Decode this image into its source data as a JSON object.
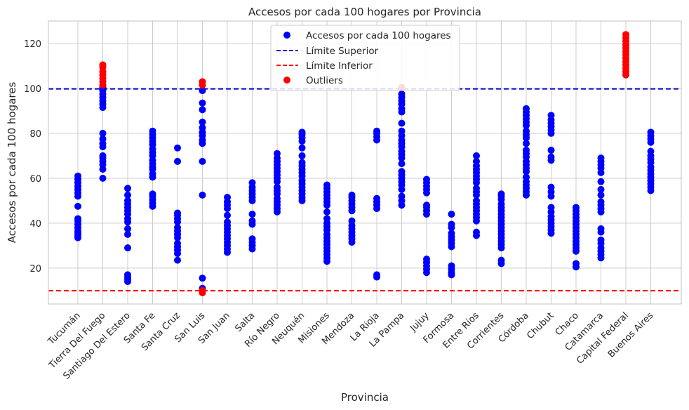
{
  "chart_data": {
    "type": "scatter",
    "title": "Accesos por cada 100 hogares por Provincia",
    "xlabel": "Provincia",
    "ylabel": "Accesos por cada 100 hogares",
    "ylim": [
      4,
      130
    ],
    "yticks": [
      20,
      40,
      60,
      80,
      100,
      120
    ],
    "grid": true,
    "legend_position": "top-center",
    "categories": [
      "Tucumán",
      "Tierra Del Fuego",
      "Santiago Del Estero",
      "Santa Fe",
      "Santa Cruz",
      "San Luis",
      "San Juan",
      "Salta",
      "Río Negro",
      "Neuquén",
      "Misiones",
      "Mendoza",
      "La Rioja",
      "La Pampa",
      "Jujuy",
      "Formosa",
      "Entre Ríos",
      "Corrientes",
      "Córdoba",
      "Chubut",
      "Chaco",
      "Catamarca",
      "Capital Federal",
      "Buenos Aires"
    ],
    "colors": {
      "series": "#0000ff",
      "upper": "#0000cc",
      "lower": "#ff0000",
      "outliers": "#ff0000"
    },
    "series": [
      {
        "name": "Accesos por cada 100 hogares",
        "values": [
          [
            33.5,
            34.5,
            35.5,
            36.5,
            38,
            39.5,
            41,
            42,
            47.5,
            52,
            53.5,
            55,
            56.5,
            58,
            59.5,
            61
          ],
          [
            60,
            64,
            66,
            67.5,
            69,
            70,
            74,
            75.5,
            77.5,
            80,
            91.5,
            93,
            94.5,
            96,
            97.5,
            99,
            100.5
          ],
          [
            14,
            15,
            16,
            17,
            29,
            35,
            37.5,
            40.5,
            42,
            44,
            45.5,
            47,
            48.5,
            50,
            52.5,
            55.5
          ],
          [
            47.5,
            49,
            50.5,
            52,
            53,
            60.5,
            62,
            64,
            65,
            66.5,
            68,
            70,
            71.5,
            73,
            75,
            76.5,
            78,
            79.5,
            81
          ],
          [
            23.5,
            26.5,
            28,
            29.5,
            31,
            33.5,
            35,
            36.5,
            38,
            40.5,
            42,
            43.5,
            44.5,
            67.5,
            73.5
          ],
          [
            11,
            15.5,
            52.5,
            67.5,
            75.5,
            77,
            79,
            80.5,
            82.5,
            85,
            90.5,
            93.5,
            99
          ],
          [
            27,
            28.5,
            30,
            31.5,
            33,
            34.5,
            36,
            37.5,
            39,
            40.5,
            43.5,
            46.5,
            48,
            49.5,
            51.5
          ],
          [
            28.5,
            30,
            31.5,
            33,
            39.5,
            41,
            44,
            50,
            51.5,
            53,
            54.5,
            56,
            58
          ],
          [
            45,
            46.5,
            48,
            49.5,
            51,
            53,
            54.5,
            56,
            58.5,
            60,
            61.5,
            63,
            64.5,
            66,
            67.5,
            69,
            71
          ],
          [
            50,
            51.5,
            53,
            54.5,
            56,
            57.5,
            59,
            61,
            62.5,
            64,
            65.5,
            67,
            70,
            73.5,
            76.5,
            78,
            79.5,
            80.5
          ],
          [
            23,
            24.5,
            26,
            27.5,
            29,
            30.5,
            32,
            33.5,
            35,
            37,
            38.5,
            40,
            42,
            45,
            48,
            49.5,
            51,
            52.5,
            54,
            55.5,
            57
          ],
          [
            31.5,
            33,
            34.5,
            36,
            37.5,
            39,
            41,
            45.5,
            47,
            48.5,
            50,
            51.5,
            52.5
          ],
          [
            16,
            17,
            46.5,
            48,
            49.5,
            51,
            77,
            78.5,
            80,
            81
          ],
          [
            48,
            50,
            52,
            55,
            57,
            58.5,
            60,
            61.5,
            63,
            66.5,
            69,
            70.5,
            72,
            74,
            75.5,
            77,
            79,
            81,
            84.5,
            89.5,
            91,
            93,
            94.5,
            96,
            97.5
          ],
          [
            18,
            19.5,
            21,
            22.5,
            24,
            44,
            45.5,
            47,
            48,
            53.5,
            55,
            56.5,
            58,
            59.5
          ],
          [
            17,
            18,
            19.5,
            21,
            29.5,
            31,
            32.5,
            34,
            35.5,
            38,
            39.5,
            44
          ],
          [
            34.5,
            36,
            41,
            42.5,
            44,
            45.5,
            47,
            48.5,
            50,
            52.5,
            54,
            55.5,
            58,
            59.5,
            61,
            62.5,
            64,
            65.5,
            67.5,
            70
          ],
          [
            22,
            23.5,
            29,
            30.5,
            32,
            33.5,
            35,
            36.5,
            38,
            39.5,
            41,
            42.5,
            44,
            45.5,
            47,
            48.5,
            50.5,
            52,
            53
          ],
          [
            52.5,
            54,
            55.5,
            57,
            58.5,
            60.5,
            63,
            64.5,
            66,
            67.5,
            69.5,
            71,
            72.5,
            75.5,
            78,
            79.5,
            81,
            83.5,
            85,
            86.5,
            88,
            89.5,
            91
          ],
          [
            35.5,
            37,
            38.5,
            40,
            41.5,
            43,
            45,
            47,
            52,
            54,
            56,
            68,
            69.5,
            72.5,
            80,
            81.5,
            83,
            84.5,
            86,
            88
          ],
          [
            20.5,
            22,
            27.5,
            29,
            30.5,
            32,
            33.5,
            35,
            36.5,
            38,
            39.5,
            41,
            42.5,
            44,
            45.5,
            47
          ],
          [
            24.5,
            26,
            27.5,
            29,
            31,
            32.5,
            36,
            37.5,
            45,
            46.5,
            48,
            49.5,
            52.5,
            55,
            58.5,
            62.5,
            64.5,
            66,
            67.5,
            69
          ],
          [],
          [
            54.5,
            56,
            57.5,
            59,
            60.5,
            62,
            63.5,
            65,
            67,
            68.5,
            70,
            72,
            76,
            77.5,
            79,
            80.5
          ]
        ]
      },
      {
        "name": "Outliers",
        "values": [
          [],
          [
            101.5,
            103,
            104.5,
            106,
            107.5,
            109.5,
            110.5
          ],
          [],
          [],
          [],
          [
            9,
            10,
            101.5,
            103
          ],
          [],
          [],
          [],
          [],
          [],
          [],
          [],
          [
            100.5
          ],
          [],
          [],
          [],
          [],
          [],
          [],
          [],
          [],
          [
            106,
            107.5,
            109,
            110.5,
            112,
            113.5,
            115,
            116.5,
            118,
            119.5,
            121,
            122.5,
            124
          ],
          []
        ]
      }
    ],
    "reference_lines": [
      {
        "name": "Límite Superior",
        "y": 99.8,
        "style": "dashed"
      },
      {
        "name": "Límite Inferior",
        "y": 9.9,
        "style": "dashed"
      }
    ]
  }
}
